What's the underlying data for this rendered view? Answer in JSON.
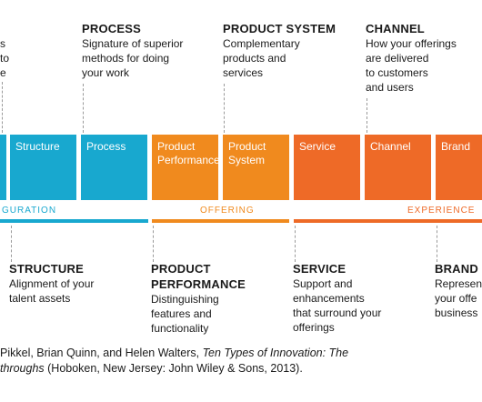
{
  "top_labels": {
    "left_fragment": [
      "s",
      "to",
      "e"
    ],
    "process": {
      "title": "PROCESS",
      "desc": [
        "Signature of superior",
        "methods for doing",
        "your work"
      ]
    },
    "product_system": {
      "title": "PRODUCT SYSTEM",
      "desc": [
        "Complementary",
        "products and",
        "services"
      ]
    },
    "channel": {
      "title": "CHANNEL",
      "desc": [
        "How your offerings",
        "are delivered",
        "to customers",
        "and users"
      ]
    }
  },
  "boxes": [
    {
      "label": [
        "Structure"
      ],
      "color": "#18a8cf"
    },
    {
      "label": [
        "Process"
      ],
      "color": "#18a8cf"
    },
    {
      "label": [
        "Product",
        "Performance"
      ],
      "color": "#f08a1e"
    },
    {
      "label": [
        "Product",
        "System"
      ],
      "color": "#f08a1e"
    },
    {
      "label": [
        "Service"
      ],
      "color": "#ee6a27"
    },
    {
      "label": [
        "Channel"
      ],
      "color": "#ee6a27"
    },
    {
      "label": [
        "Brand"
      ],
      "color": "#ee6a27"
    }
  ],
  "bands": {
    "configuration": "GURATION",
    "offering": "OFFERING",
    "experience": "EXPERIENCE",
    "colors": {
      "configuration": "#18a8cf",
      "offering": "#f08a1e",
      "experience": "#ee6a27"
    }
  },
  "bottom_labels": {
    "structure": {
      "title": "STRUCTURE",
      "desc": [
        "Alignment of your",
        "talent assets"
      ]
    },
    "product_performance": {
      "title": [
        "PRODUCT",
        "PERFORMANCE"
      ],
      "desc": [
        "Distinguishing",
        "features and",
        "functionality"
      ]
    },
    "service": {
      "title": "SERVICE",
      "desc": [
        "Support and",
        "enhancements",
        "that surround your",
        "offerings"
      ]
    },
    "brand": {
      "title": "BRAND",
      "desc": [
        "Represen",
        "your offe",
        "business"
      ]
    }
  },
  "citation": {
    "line1_prefix": "Pikkel, Brian Quinn, and Helen Walters, ",
    "line1_italic": "Ten Types of Innovation: The",
    "line2_italic": "throughs",
    "line2_rest": " (Hoboken, New Jersey: John Wiley & Sons, 2013)."
  }
}
